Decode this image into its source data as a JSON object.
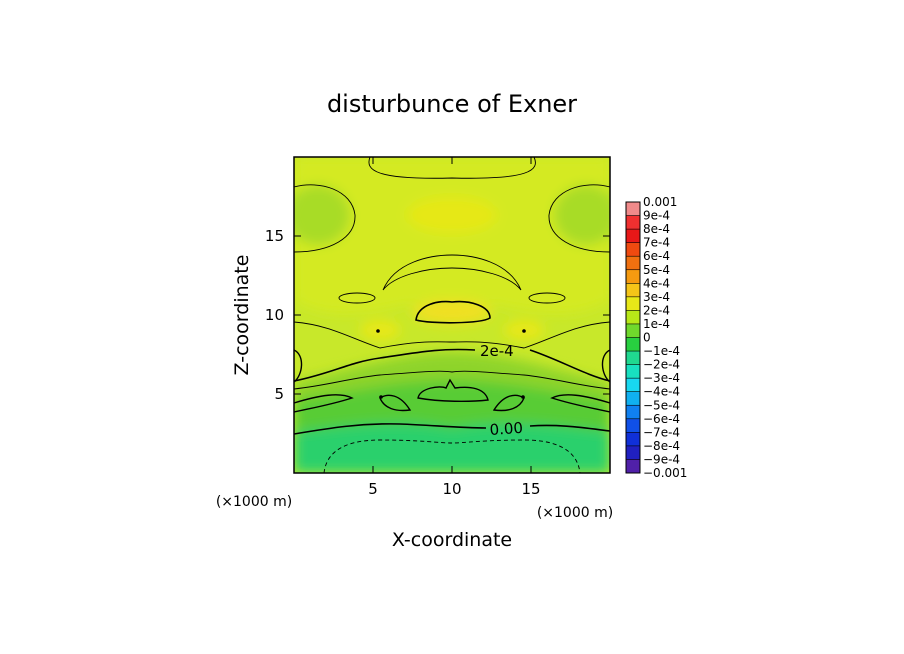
{
  "chart_data": {
    "type": "heatmap",
    "subtype": "filled-contour",
    "title": "disturbunce of Exner",
    "xlabel": "X-coordinate",
    "ylabel": "Z-coordinate",
    "x_unit_note": "(×1000 m)",
    "y_unit_note": "(×1000 m)",
    "xlim": [
      0,
      20
    ],
    "ylim": [
      0,
      20
    ],
    "x_ticks": [
      "5",
      "10",
      "15"
    ],
    "y_ticks": [
      "5",
      "10",
      "15"
    ],
    "x_tick_values": [
      5,
      10,
      15
    ],
    "y_tick_values": [
      5,
      10,
      15
    ],
    "contour_labels": [
      "2e-4",
      "0.00"
    ],
    "colorbar": {
      "labels": [
        "0.001",
        "9e-4",
        "8e-4",
        "7e-4",
        "6e-4",
        "5e-4",
        "4e-4",
        "3e-4",
        "2e-4",
        "1e-4",
        "0",
        "−1e-4",
        "−2e-4",
        "−3e-4",
        "−4e-4",
        "−5e-4",
        "−6e-4",
        "−7e-4",
        "−8e-4",
        "−9e-4",
        "−0.001"
      ],
      "colors": [
        "#f08a8a",
        "#f03030",
        "#e81818",
        "#f04a10",
        "#f07010",
        "#f59a10",
        "#f5c518",
        "#e8e818",
        "#b8e818",
        "#70d82c",
        "#28d040",
        "#20d890",
        "#18e0c0",
        "#18d8f0",
        "#10b0f0",
        "#1080f0",
        "#1050e8",
        "#1030d8",
        "#2020c0",
        "#5020a8"
      ],
      "limits": [
        -0.001,
        0.001
      ]
    },
    "approx_field_levels": {
      "upper_region": 0.0003,
      "warm_blob_center_z10": 0.0004,
      "mid_band": 0.0002,
      "lower_band": 0.0001,
      "bottom_region": 0
    }
  }
}
